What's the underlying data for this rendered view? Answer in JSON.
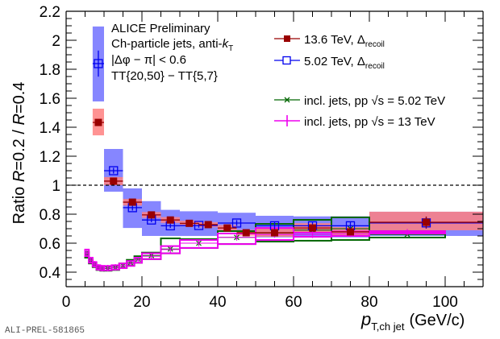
{
  "chart_data": {
    "type": "scatter",
    "title": "",
    "xlabel": "p_T,ch jet (GeV/c)",
    "xlabel_parts": {
      "symbol": "p",
      "subscript": "T,ch jet",
      "unit": "(GeV/c)"
    },
    "ylabel": "Ratio R=0.2 / R=0.4",
    "ylabel_parts": {
      "prefix": "Ratio ",
      "r1": "R",
      "v1": "=0.2 / ",
      "r2": "R",
      "v2": "=0.4"
    },
    "xlim": [
      0,
      110
    ],
    "ylim": [
      0.3,
      2.2
    ],
    "xticks": [
      0,
      20,
      40,
      60,
      80,
      100
    ],
    "yticks": [
      0.4,
      0.6,
      0.8,
      1,
      1.2,
      1.4,
      1.6,
      1.8,
      2,
      2.2
    ],
    "reference_line": 1,
    "grid": false,
    "legend_position": "top-right",
    "annotations": [
      "ALICE Preliminary",
      "Ch-particle jets, anti-k_T",
      "|Δφ − π| < 0.6",
      "TT{20,50} − TT{5,7}"
    ],
    "preliminary_tag": "ALI-PREL-581865",
    "series": [
      {
        "name": "13.6 TeV, Δrecoil",
        "legend": {
          "main": "13.6 TeV, Δ",
          "sub": "recoil"
        },
        "color": "#990000",
        "band_color": "#ff8080",
        "marker": "filled-square",
        "points": [
          {
            "x": 8.5,
            "xlo": 7,
            "xhi": 10,
            "y": 1.433,
            "stat": 0.01,
            "syslo": 1.344,
            "syshi": 1.528
          },
          {
            "x": 12.5,
            "xlo": 10,
            "xhi": 15,
            "y": 1.028,
            "stat": 0.01,
            "syslo": 1.0,
            "syshi": 1.056
          },
          {
            "x": 17.5,
            "xlo": 15,
            "xhi": 20,
            "y": 0.883,
            "stat": 0.01,
            "syslo": 0.86,
            "syshi": 0.905
          },
          {
            "x": 22.5,
            "xlo": 20,
            "xhi": 25,
            "y": 0.795,
            "stat": 0.01,
            "syslo": 0.775,
            "syshi": 0.815
          },
          {
            "x": 27.5,
            "xlo": 25,
            "xhi": 30,
            "y": 0.76,
            "stat": 0.01,
            "syslo": 0.74,
            "syshi": 0.78
          },
          {
            "x": 32.5,
            "xlo": 30,
            "xhi": 35,
            "y": 0.737,
            "stat": 0.01,
            "syslo": 0.72,
            "syshi": 0.755
          },
          {
            "x": 37.5,
            "xlo": 35,
            "xhi": 40,
            "y": 0.728,
            "stat": 0.01,
            "syslo": 0.71,
            "syshi": 0.745
          },
          {
            "x": 42.5,
            "xlo": 40,
            "xhi": 45,
            "y": 0.705,
            "stat": 0.01,
            "syslo": 0.685,
            "syshi": 0.725
          },
          {
            "x": 47.5,
            "xlo": 45,
            "xhi": 50,
            "y": 0.672,
            "stat": 0.01,
            "syslo": 0.652,
            "syshi": 0.692
          },
          {
            "x": 55,
            "xlo": 50,
            "xhi": 60,
            "y": 0.672,
            "stat": 0.015,
            "syslo": 0.644,
            "syshi": 0.7
          },
          {
            "x": 65,
            "xlo": 60,
            "xhi": 70,
            "y": 0.705,
            "stat": 0.02,
            "syslo": 0.672,
            "syshi": 0.738
          },
          {
            "x": 75,
            "xlo": 70,
            "xhi": 80,
            "y": 0.678,
            "stat": 0.02,
            "syslo": 0.645,
            "syshi": 0.711
          },
          {
            "x": 95,
            "xlo": 80,
            "xhi": 110,
            "y": 0.744,
            "stat": 0.04,
            "syslo": 0.689,
            "syshi": 0.817
          }
        ]
      },
      {
        "name": "5.02 TeV, Δrecoil",
        "legend": {
          "main": "5.02 TeV, Δ",
          "sub": "recoil"
        },
        "color": "#0000ee",
        "band_color": "#7f7fff",
        "marker": "open-square",
        "points": [
          {
            "x": 8.5,
            "xlo": 7,
            "xhi": 10,
            "y": 1.839,
            "stat": 0.09,
            "syslo": 1.578,
            "syshi": 2.095
          },
          {
            "x": 12.5,
            "xlo": 10,
            "xhi": 15,
            "y": 1.1,
            "stat": 0.02,
            "syslo": 0.955,
            "syshi": 1.25
          },
          {
            "x": 17.5,
            "xlo": 15,
            "xhi": 20,
            "y": 0.845,
            "stat": 0.02,
            "syslo": 0.705,
            "syshi": 0.978
          },
          {
            "x": 22.5,
            "xlo": 20,
            "xhi": 25,
            "y": 0.76,
            "stat": 0.015,
            "syslo": 0.65,
            "syshi": 0.89
          },
          {
            "x": 27.5,
            "xlo": 25,
            "xhi": 30,
            "y": 0.72,
            "stat": 0.015,
            "syslo": 0.65,
            "syshi": 0.83
          },
          {
            "x": 35,
            "xlo": 30,
            "xhi": 40,
            "y": 0.722,
            "stat": 0.015,
            "syslo": 0.65,
            "syshi": 0.82
          },
          {
            "x": 45,
            "xlo": 40,
            "xhi": 50,
            "y": 0.739,
            "stat": 0.02,
            "syslo": 0.68,
            "syshi": 0.81
          },
          {
            "x": 55,
            "xlo": 50,
            "xhi": 60,
            "y": 0.72,
            "stat": 0.025,
            "syslo": 0.64,
            "syshi": 0.789
          },
          {
            "x": 65,
            "xlo": 60,
            "xhi": 70,
            "y": 0.72,
            "stat": 0.03,
            "syslo": 0.64,
            "syshi": 0.785
          },
          {
            "x": 75,
            "xlo": 70,
            "xhi": 80,
            "y": 0.72,
            "stat": 0.03,
            "syslo": 0.64,
            "syshi": 0.785
          },
          {
            "x": 95,
            "xlo": 80,
            "xhi": 110,
            "y": 0.74,
            "stat": 0.04,
            "syslo": 0.65,
            "syshi": 0.817
          }
        ]
      },
      {
        "name": "incl. jets, pp √s = 5.02 TeV",
        "legend": {
          "main": "incl. jets, pp  √s = 5.02 TeV"
        },
        "color": "#006600",
        "marker": "x",
        "points": [
          {
            "x": 5.5,
            "xlo": 5,
            "xhi": 6,
            "y": 0.52,
            "syslo": 0.5,
            "syshi": 0.54
          },
          {
            "x": 6.5,
            "xlo": 6,
            "xhi": 7,
            "y": 0.475,
            "syslo": 0.46,
            "syshi": 0.49
          },
          {
            "x": 7.5,
            "xlo": 7,
            "xhi": 8,
            "y": 0.45,
            "syslo": 0.435,
            "syshi": 0.465
          },
          {
            "x": 8.5,
            "xlo": 8,
            "xhi": 9,
            "y": 0.43,
            "syslo": 0.415,
            "syshi": 0.445
          },
          {
            "x": 9.5,
            "xlo": 9,
            "xhi": 10,
            "y": 0.425,
            "syslo": 0.41,
            "syshi": 0.44
          },
          {
            "x": 11,
            "xlo": 10,
            "xhi": 12,
            "y": 0.425,
            "syslo": 0.41,
            "syshi": 0.44
          },
          {
            "x": 13,
            "xlo": 12,
            "xhi": 14,
            "y": 0.43,
            "syslo": 0.415,
            "syshi": 0.445
          },
          {
            "x": 15,
            "xlo": 14,
            "xhi": 16,
            "y": 0.445,
            "syslo": 0.43,
            "syshi": 0.46
          },
          {
            "x": 17,
            "xlo": 16,
            "xhi": 18,
            "y": 0.465,
            "syslo": 0.445,
            "syshi": 0.485
          },
          {
            "x": 19,
            "xlo": 18,
            "xhi": 20,
            "y": 0.49,
            "syslo": 0.465,
            "syshi": 0.51
          },
          {
            "x": 22.5,
            "xlo": 20,
            "xhi": 25,
            "y": 0.515,
            "syslo": 0.49,
            "syshi": 0.535
          },
          {
            "x": 27.5,
            "xlo": 25,
            "xhi": 30,
            "y": 0.56,
            "syslo": 0.53,
            "syshi": 0.633
          },
          {
            "x": 35,
            "xlo": 30,
            "xhi": 40,
            "y": 0.6,
            "syslo": 0.567,
            "syshi": 0.628
          },
          {
            "x": 45,
            "xlo": 40,
            "xhi": 50,
            "y": 0.64,
            "syslo": 0.594,
            "syshi": 0.683
          },
          {
            "x": 55,
            "xlo": 50,
            "xhi": 60,
            "y": 0.67,
            "syslo": 0.611,
            "syshi": 0.733
          },
          {
            "x": 65,
            "xlo": 60,
            "xhi": 70,
            "y": 0.69,
            "syslo": 0.617,
            "syshi": 0.761
          },
          {
            "x": 75,
            "xlo": 70,
            "xhi": 80,
            "y": 0.7,
            "syslo": 0.622,
            "syshi": 0.778
          },
          {
            "x": 90,
            "xlo": 80,
            "xhi": 100,
            "y": 0.66,
            "syslo": 0.639,
            "syshi": 0.683
          }
        ]
      },
      {
        "name": "incl. jets, pp √s = 13 TeV",
        "legend": {
          "main": "incl. jets, pp  √s = 13 TeV"
        },
        "color": "#ee00ee",
        "marker": "plus",
        "points": [
          {
            "x": 5.5,
            "xlo": 5,
            "xhi": 6,
            "y": 0.533,
            "syslo": 0.51,
            "syshi": 0.556
          },
          {
            "x": 6.5,
            "xlo": 6,
            "xhi": 7,
            "y": 0.483,
            "syslo": 0.465,
            "syshi": 0.5
          },
          {
            "x": 7.5,
            "xlo": 7,
            "xhi": 8,
            "y": 0.455,
            "syslo": 0.44,
            "syshi": 0.47
          },
          {
            "x": 8.5,
            "xlo": 8,
            "xhi": 9,
            "y": 0.433,
            "syslo": 0.418,
            "syshi": 0.448
          },
          {
            "x": 9.5,
            "xlo": 9,
            "xhi": 10,
            "y": 0.428,
            "syslo": 0.413,
            "syshi": 0.443
          },
          {
            "x": 11,
            "xlo": 10,
            "xhi": 12,
            "y": 0.428,
            "syslo": 0.413,
            "syshi": 0.443
          },
          {
            "x": 13,
            "xlo": 12,
            "xhi": 14,
            "y": 0.433,
            "syslo": 0.418,
            "syshi": 0.448
          },
          {
            "x": 15,
            "xlo": 14,
            "xhi": 16,
            "y": 0.444,
            "syslo": 0.428,
            "syshi": 0.46
          },
          {
            "x": 17,
            "xlo": 16,
            "xhi": 18,
            "y": 0.46,
            "syslo": 0.443,
            "syshi": 0.477
          },
          {
            "x": 19,
            "xlo": 18,
            "xhi": 20,
            "y": 0.483,
            "syslo": 0.465,
            "syshi": 0.5
          },
          {
            "x": 22.5,
            "xlo": 20,
            "xhi": 25,
            "y": 0.51,
            "syslo": 0.49,
            "syshi": 0.53
          },
          {
            "x": 27.5,
            "xlo": 25,
            "xhi": 30,
            "y": 0.556,
            "syslo": 0.53,
            "syshi": 0.58
          },
          {
            "x": 35,
            "xlo": 30,
            "xhi": 40,
            "y": 0.6,
            "syslo": 0.567,
            "syshi": 0.622
          },
          {
            "x": 45,
            "xlo": 40,
            "xhi": 50,
            "y": 0.64,
            "syslo": 0.594,
            "syshi": 0.667
          },
          {
            "x": 55,
            "xlo": 50,
            "xhi": 60,
            "y": 0.66,
            "syslo": 0.622,
            "syshi": 0.705
          },
          {
            "x": 65,
            "xlo": 60,
            "xhi": 70,
            "y": 0.658,
            "syslo": 0.644,
            "syshi": 0.672
          },
          {
            "x": 75,
            "xlo": 70,
            "xhi": 80,
            "y": 0.665,
            "syslo": 0.65,
            "syshi": 0.68
          },
          {
            "x": 90,
            "xlo": 80,
            "xhi": 100,
            "y": 0.675,
            "syslo": 0.667,
            "syshi": 0.683
          }
        ]
      }
    ]
  }
}
